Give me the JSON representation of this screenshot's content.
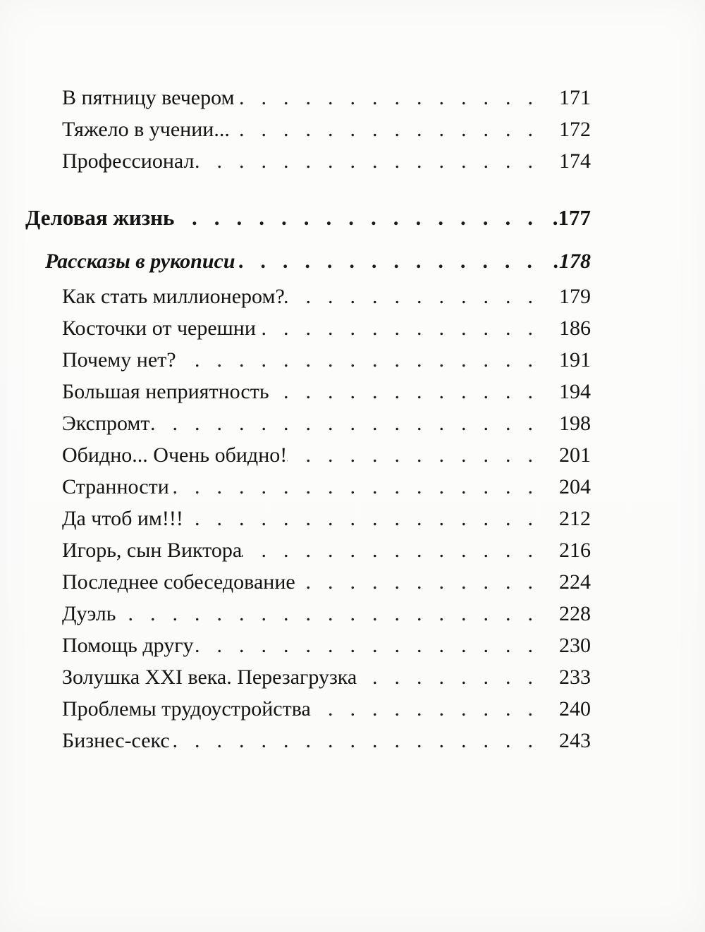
{
  "toc": {
    "dot_leader": "..............................",
    "entries": [
      {
        "style": "item",
        "title": "В пятницу вечером",
        "page": "171"
      },
      {
        "style": "item",
        "title": "Тяжело в учении...",
        "page": "172"
      },
      {
        "style": "item",
        "title": "Профессионал",
        "page": "174"
      },
      {
        "style": "section",
        "title": "Деловая жизнь",
        "page": ".177"
      },
      {
        "style": "subsection",
        "title": "Рассказы в рукописи",
        "page": ".178"
      },
      {
        "style": "item",
        "title": "Как стать миллионером?",
        "page": "179"
      },
      {
        "style": "item",
        "title": "Косточки от черешни",
        "page": "186"
      },
      {
        "style": "item",
        "title": "Почему нет?",
        "page": "191"
      },
      {
        "style": "item",
        "title": "Большая неприятность",
        "page": "194"
      },
      {
        "style": "item",
        "title": "Экспромт",
        "page": "198"
      },
      {
        "style": "item",
        "title": "Обидно... Очень обидно!",
        "page": "201"
      },
      {
        "style": "item",
        "title": "Странности",
        "page": "204"
      },
      {
        "style": "item",
        "title": "Да чтоб им!!!",
        "page": "212"
      },
      {
        "style": "item",
        "title": "Игорь, сын Виктора",
        "page": "216"
      },
      {
        "style": "item",
        "title": "Последнее собеседование",
        "page": "224"
      },
      {
        "style": "item",
        "title": "Дуэль",
        "page": "228"
      },
      {
        "style": "item",
        "title": "Помощь другу",
        "page": "230"
      },
      {
        "style": "item",
        "title": "Золушка XXI века. Перезагрузка",
        "page": "233"
      },
      {
        "style": "item",
        "title": "Проблемы трудоустройства",
        "page": "240"
      },
      {
        "style": "item",
        "title": "Бизнес-секс",
        "page": "243"
      }
    ]
  }
}
